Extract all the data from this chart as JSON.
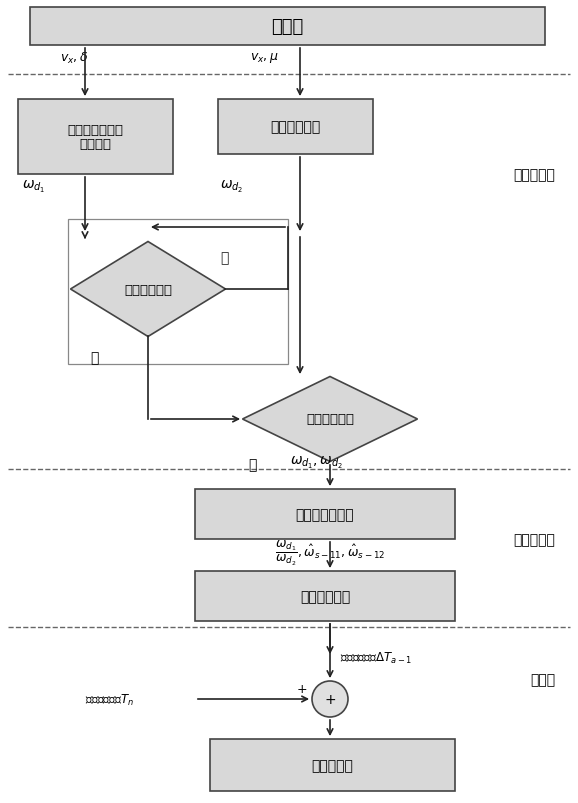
{
  "bg_color": "#ffffff",
  "box_fill": "#d8d8d8",
  "box_edge": "#444444",
  "fig_width": 5.78,
  "fig_height": 8.04,
  "font_cn": "SimSun",
  "sensor_label": "传感器",
  "layer1_label": "工况识别层",
  "layer2_label": "协调控制层",
  "layer3_label": "执行层",
  "label_vx_delta": "$v_x,\\delta$",
  "label_vx_mu": "$v_x,\\mu$",
  "label_wd1": "$\\omega_{d_1}$",
  "label_wd2": "$\\omega_{d_2}$",
  "label_no": "否",
  "label_yes1": "是",
  "label_yes2": "是",
  "model_label": "二自由度车辆动\n力学模型",
  "road_label": "路面附着极限",
  "driver_label": "驾驶员误操作",
  "coord_label": "需要协调控制",
  "judge_label": "误操作程度判断",
  "command_label": "协调命令制定",
  "motor_label": "电机控制器",
  "label_wd1_wd2": "$\\omega_{d_1},\\omega_{d_2}$",
  "label_fraction": "$\\dfrac{\\omega_{d_1}}{\\omega_{d_2}},\\hat{\\omega}_{s-11},\\hat{\\omega}_{s-12}$",
  "label_orig": "原有助力力矩$T_n$",
  "label_corr": "修正助力力矩$\\Delta T_{a-1}$"
}
